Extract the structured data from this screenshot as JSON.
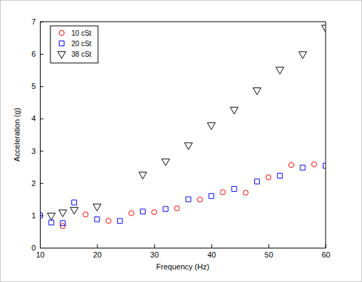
{
  "chart_data": {
    "type": "scatter",
    "x_label": "Frequency (Hz)",
    "y_label": "Acceleration (g)",
    "xlim": [
      10,
      60
    ],
    "ylim": [
      0,
      7
    ],
    "xticks": [
      10,
      20,
      30,
      40,
      50,
      60
    ],
    "yticks": [
      0,
      1,
      2,
      3,
      4,
      5,
      6,
      7
    ],
    "legend": "upper left",
    "series": [
      {
        "name": "10 cSt",
        "color": "#ff0000",
        "marker": "circle",
        "x": [
          14,
          18,
          22,
          26,
          30,
          34,
          38,
          42,
          46,
          50,
          54,
          58
        ],
        "values": [
          0.67,
          1.03,
          0.83,
          1.07,
          1.1,
          1.22,
          1.49,
          1.72,
          1.7,
          2.18,
          2.56,
          2.58
        ]
      },
      {
        "name": "20 cSt",
        "color": "#0000ff",
        "marker": "square",
        "x": [
          10,
          12,
          14,
          16,
          20,
          24,
          28,
          32,
          36,
          40,
          44,
          48,
          52,
          56,
          60
        ],
        "values": [
          1.0,
          0.78,
          0.76,
          1.4,
          0.88,
          0.83,
          1.12,
          1.2,
          1.5,
          1.6,
          1.82,
          2.05,
          2.23,
          2.48,
          2.54
        ]
      },
      {
        "name": "38 cSt",
        "color": "#000000",
        "marker": "triangle-down",
        "x": [
          12,
          14,
          16,
          20,
          28,
          32,
          36,
          40,
          44,
          48,
          52,
          56,
          60
        ],
        "values": [
          1.0,
          1.1,
          1.18,
          1.28,
          2.27,
          2.68,
          3.18,
          3.8,
          4.28,
          4.88,
          5.52,
          6.0,
          6.82
        ]
      }
    ]
  }
}
